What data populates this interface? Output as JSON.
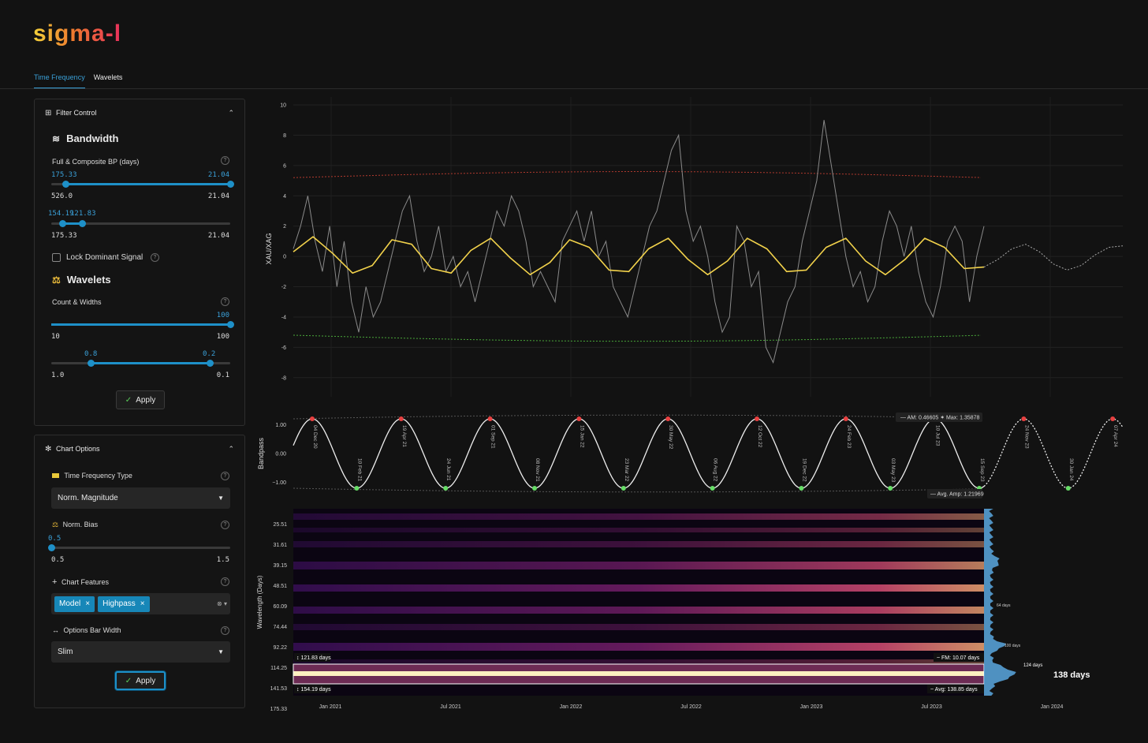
{
  "app": {
    "logo": "sigma-l"
  },
  "tabs": [
    {
      "label": "Time Frequency",
      "active": true
    },
    {
      "label": "Wavelets",
      "active": false
    }
  ],
  "filter_control": {
    "title": "Filter Control",
    "bandwidth": {
      "title": "Bandwidth",
      "label": "Full & Composite BP (days)",
      "slider1": {
        "low_value": "175.33",
        "high_value": "21.04",
        "min_label": "526.0",
        "max_label": "21.04"
      },
      "slider2": {
        "low_value": "154.19",
        "high_value": "121.83",
        "min_label": "175.33",
        "max_label": "21.04"
      }
    },
    "lock_label": "Lock Dominant Signal",
    "wavelets": {
      "title": "Wavelets",
      "label": "Count & Widths",
      "slider1": {
        "high_value": "100",
        "min_label": "10",
        "max_label": "100"
      },
      "slider2": {
        "low_value": "0.8",
        "high_value": "0.2",
        "min_label": "1.0",
        "max_label": "0.1"
      }
    },
    "apply_label": "Apply"
  },
  "chart_options": {
    "title": "Chart Options",
    "tf_type": {
      "label": "Time Frequency Type",
      "value": "Norm. Magnitude"
    },
    "norm_bias": {
      "label": "Norm. Bias",
      "value": "0.5",
      "min_label": "0.5",
      "max_label": "1.5"
    },
    "features": {
      "label": "Chart Features",
      "chips": [
        "Model",
        "Highpass"
      ]
    },
    "bar_width": {
      "label": "Options Bar Width",
      "value": "Slim"
    },
    "apply_label": "Apply"
  },
  "colors": {
    "accent": "#1e90c8",
    "model": "#f2d24b",
    "upper_band": "#b23a2e",
    "lower_band": "#4aa83a",
    "peak": "#e84040",
    "trough": "#66dd66"
  },
  "chart_data": [
    {
      "type": "line",
      "ylabel": "XAU/XAG",
      "yticks": [
        "10",
        "8",
        "6",
        "4",
        "2",
        "0",
        "-2",
        "-4",
        "-6",
        "-8"
      ],
      "ylim": [
        -9,
        10
      ],
      "series": [
        {
          "values": [
            0.5,
            2,
            4,
            1,
            -1,
            2,
            -2,
            1,
            -3,
            -5,
            -2,
            -4,
            -3,
            -1,
            1,
            3,
            4,
            1,
            -1,
            0,
            2,
            -1,
            0,
            -2,
            -1,
            -3,
            -1,
            1,
            3,
            2,
            4,
            3,
            1,
            -2,
            -1,
            -2,
            -3,
            1,
            2,
            3,
            1,
            3,
            0,
            1,
            -2,
            -3,
            -4,
            -2,
            0,
            2,
            3,
            5,
            7,
            8,
            3,
            1,
            2,
            0,
            -3,
            -5,
            -4,
            2,
            1,
            -2,
            -1,
            -6,
            -7,
            -5,
            -3,
            -2,
            1,
            3,
            5,
            9,
            6,
            3,
            0,
            -2,
            -1,
            -3,
            -2,
            1,
            3,
            2,
            0,
            2,
            -1,
            -3,
            -4,
            -2,
            1,
            2,
            1,
            -3,
            0,
            2
          ]
        },
        {
          "values": [
            0.3,
            1.3,
            0.2,
            -1.1,
            -0.6,
            1.1,
            0.8,
            -0.8,
            -1.1,
            0.4,
            1.2,
            -0.1,
            -1.2,
            -0.4,
            1.1,
            0.6,
            -0.9,
            -1.0,
            0.5,
            1.2,
            -0.2,
            -1.2,
            -0.3,
            1.2,
            0.5,
            -1.0,
            -0.9,
            0.6,
            1.2,
            -0.3,
            -1.2,
            -0.2,
            1.2,
            0.6,
            -0.8,
            -0.7
          ]
        }
      ],
      "forecast": [
        -0.7,
        -0.2,
        0.5,
        0.8,
        0.3,
        -0.5,
        -0.9,
        -0.6,
        0.1,
        0.6,
        0.7
      ]
    },
    {
      "type": "line",
      "ylabel": "Bandpass",
      "yticks": [
        "1.00",
        "0.00",
        "−1.00"
      ],
      "peaks": [
        "04 Dec 20",
        "19 Apr 21",
        "01 Sep 21",
        "15 Jan 22",
        "30 May 22",
        "12 Oct 22",
        "24 Feb 23",
        "10 Jul 23",
        "24 Nov 23",
        "07 Apr 24"
      ],
      "troughs": [
        "10 Feb 21",
        "24 Jun 21",
        "08 Nov 21",
        "23 Mar 22",
        "06 Aug 22",
        "19 Dec 22",
        "03 May 23",
        "15 Sep 23",
        "30 Jan 24"
      ],
      "am_label": "AM: 0.46605",
      "max_label": "Max: 1.35878",
      "avg_amp_label": "Avg. Amp: 1.21969"
    },
    {
      "type": "heatmap",
      "ylabel": "Wavelength (Days)",
      "yticks": [
        "25.51",
        "31.61",
        "39.15",
        "48.51",
        "60.09",
        "74.44",
        "92.22",
        "114.25",
        "141.53",
        "175.33"
      ],
      "xticks": [
        "Jan 2021",
        "Jul 2021",
        "Jan 2022",
        "Jul 2022",
        "Jan 2023",
        "Jul 2023",
        "Jan 2024"
      ],
      "band_upper": "121.83 days",
      "band_lower": "154.19 days",
      "fm_label": "FM: 10.07 days",
      "avg_label": "Avg: 138.85 days",
      "histogram_labels": [
        "64 days",
        "100 days",
        "124 days",
        "138 days"
      ]
    }
  ]
}
